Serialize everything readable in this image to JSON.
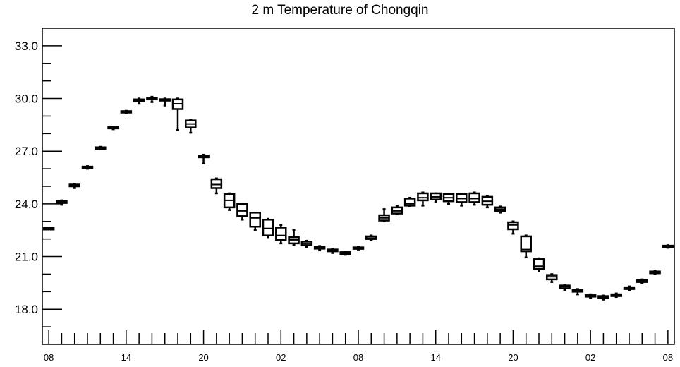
{
  "chart_data": {
    "type": "boxplot",
    "title": "2 m Temperature of Chongqin",
    "xlabel": "",
    "ylabel": "",
    "ylim": [
      16.0,
      34.0
    ],
    "y_ticks": [
      "18.0",
      "21.0",
      "24.0",
      "27.0",
      "30.0",
      "33.0"
    ],
    "y_tick_values": [
      18.0,
      21.0,
      24.0,
      27.0,
      30.0,
      33.0
    ],
    "x_tick_labels": [
      "08",
      "14",
      "20",
      "02",
      "08",
      "14",
      "20",
      "02",
      "08"
    ],
    "x_tick_label_hours": [
      0,
      6,
      12,
      18,
      24,
      30,
      36,
      42,
      48
    ],
    "x_step_hours": 1,
    "x_range_hours": [
      -0.5,
      48.5
    ],
    "grid": false,
    "colors": {
      "box": "#000000",
      "background": "#ffffff"
    },
    "boxes": [
      {
        "hour": 0,
        "min": 22.55,
        "q1": 22.58,
        "median": 22.6,
        "q3": 22.62,
        "max": 22.65
      },
      {
        "hour": 1,
        "min": 23.95,
        "q1": 24.05,
        "median": 24.1,
        "q3": 24.15,
        "max": 24.2
      },
      {
        "hour": 2,
        "min": 24.9,
        "q1": 25.0,
        "median": 25.05,
        "q3": 25.1,
        "max": 25.15
      },
      {
        "hour": 3,
        "min": 26.0,
        "q1": 26.05,
        "median": 26.1,
        "q3": 26.12,
        "max": 26.15
      },
      {
        "hour": 4,
        "min": 27.1,
        "q1": 27.15,
        "median": 27.2,
        "q3": 27.22,
        "max": 27.25
      },
      {
        "hour": 5,
        "min": 28.25,
        "q1": 28.3,
        "median": 28.35,
        "q3": 28.38,
        "max": 28.4
      },
      {
        "hour": 6,
        "min": 29.15,
        "q1": 29.2,
        "median": 29.25,
        "q3": 29.28,
        "max": 29.3
      },
      {
        "hour": 7,
        "min": 29.7,
        "q1": 29.85,
        "median": 29.9,
        "q3": 29.95,
        "max": 30.0
      },
      {
        "hour": 8,
        "min": 29.8,
        "q1": 29.95,
        "median": 30.0,
        "q3": 30.05,
        "max": 30.1
      },
      {
        "hour": 9,
        "min": 29.6,
        "q1": 29.88,
        "median": 29.92,
        "q3": 29.96,
        "max": 30.0
      },
      {
        "hour": 10,
        "min": 28.2,
        "q1": 29.4,
        "median": 29.7,
        "q3": 29.95,
        "max": 30.0
      },
      {
        "hour": 11,
        "min": 28.05,
        "q1": 28.35,
        "median": 28.55,
        "q3": 28.75,
        "max": 28.8
      },
      {
        "hour": 12,
        "min": 26.3,
        "q1": 26.65,
        "median": 26.7,
        "q3": 26.75,
        "max": 26.8
      },
      {
        "hour": 13,
        "min": 24.6,
        "q1": 24.9,
        "median": 25.1,
        "q3": 25.4,
        "max": 25.45
      },
      {
        "hour": 14,
        "min": 23.65,
        "q1": 23.8,
        "median": 24.2,
        "q3": 24.55,
        "max": 24.6
      },
      {
        "hour": 15,
        "min": 23.1,
        "q1": 23.3,
        "median": 23.6,
        "q3": 24.0,
        "max": 24.0
      },
      {
        "hour": 16,
        "min": 22.5,
        "q1": 22.7,
        "median": 23.2,
        "q3": 23.5,
        "max": 23.5
      },
      {
        "hour": 17,
        "min": 22.1,
        "q1": 22.2,
        "median": 22.6,
        "q3": 23.1,
        "max": 23.15
      },
      {
        "hour": 18,
        "min": 21.75,
        "q1": 21.95,
        "median": 22.2,
        "q3": 22.65,
        "max": 22.8
      },
      {
        "hour": 19,
        "min": 21.65,
        "q1": 21.75,
        "median": 21.95,
        "q3": 22.1,
        "max": 22.5
      },
      {
        "hour": 20,
        "min": 21.55,
        "q1": 21.65,
        "median": 21.75,
        "q3": 21.85,
        "max": 21.9
      },
      {
        "hour": 21,
        "min": 21.35,
        "q1": 21.45,
        "median": 21.5,
        "q3": 21.55,
        "max": 21.6
      },
      {
        "hour": 22,
        "min": 21.2,
        "q1": 21.3,
        "median": 21.35,
        "q3": 21.4,
        "max": 21.45
      },
      {
        "hour": 23,
        "min": 21.1,
        "q1": 21.15,
        "median": 21.2,
        "q3": 21.25,
        "max": 21.25
      },
      {
        "hour": 24,
        "min": 21.4,
        "q1": 21.45,
        "median": 21.5,
        "q3": 21.52,
        "max": 21.55
      },
      {
        "hour": 25,
        "min": 21.95,
        "q1": 22.0,
        "median": 22.05,
        "q3": 22.15,
        "max": 22.2
      },
      {
        "hour": 26,
        "min": 23.0,
        "q1": 23.05,
        "median": 23.2,
        "q3": 23.35,
        "max": 23.7
      },
      {
        "hour": 27,
        "min": 23.4,
        "q1": 23.45,
        "median": 23.6,
        "q3": 23.8,
        "max": 23.9
      },
      {
        "hour": 28,
        "min": 23.85,
        "q1": 23.9,
        "median": 24.0,
        "q3": 24.3,
        "max": 24.35
      },
      {
        "hour": 29,
        "min": 23.9,
        "q1": 24.2,
        "median": 24.35,
        "q3": 24.6,
        "max": 24.65
      },
      {
        "hour": 30,
        "min": 24.1,
        "q1": 24.25,
        "median": 24.4,
        "q3": 24.6,
        "max": 24.6
      },
      {
        "hour": 31,
        "min": 24.0,
        "q1": 24.15,
        "median": 24.35,
        "q3": 24.55,
        "max": 24.55
      },
      {
        "hour": 32,
        "min": 23.9,
        "q1": 24.1,
        "median": 24.3,
        "q3": 24.55,
        "max": 24.55
      },
      {
        "hour": 33,
        "min": 23.95,
        "q1": 24.1,
        "median": 24.3,
        "q3": 24.6,
        "max": 24.65
      },
      {
        "hour": 34,
        "min": 23.8,
        "q1": 23.95,
        "median": 24.15,
        "q3": 24.4,
        "max": 24.45
      },
      {
        "hour": 35,
        "min": 23.5,
        "q1": 23.6,
        "median": 23.7,
        "q3": 23.8,
        "max": 23.85
      },
      {
        "hour": 36,
        "min": 22.3,
        "q1": 22.55,
        "median": 22.8,
        "q3": 22.95,
        "max": 23.0
      },
      {
        "hour": 37,
        "min": 20.95,
        "q1": 21.3,
        "median": 21.4,
        "q3": 22.15,
        "max": 22.2
      },
      {
        "hour": 38,
        "min": 20.15,
        "q1": 20.3,
        "median": 20.45,
        "q3": 20.85,
        "max": 20.9
      },
      {
        "hour": 39,
        "min": 19.55,
        "q1": 19.7,
        "median": 19.85,
        "q3": 19.95,
        "max": 20.0
      },
      {
        "hour": 40,
        "min": 19.1,
        "q1": 19.2,
        "median": 19.3,
        "q3": 19.35,
        "max": 19.4
      },
      {
        "hour": 41,
        "min": 18.85,
        "q1": 19.0,
        "median": 19.05,
        "q3": 19.1,
        "max": 19.15
      },
      {
        "hour": 42,
        "min": 18.65,
        "q1": 18.72,
        "median": 18.75,
        "q3": 18.8,
        "max": 18.85
      },
      {
        "hour": 43,
        "min": 18.55,
        "q1": 18.62,
        "median": 18.68,
        "q3": 18.75,
        "max": 18.78
      },
      {
        "hour": 44,
        "min": 18.7,
        "q1": 18.75,
        "median": 18.8,
        "q3": 18.85,
        "max": 18.9
      },
      {
        "hour": 45,
        "min": 19.1,
        "q1": 19.15,
        "median": 19.2,
        "q3": 19.25,
        "max": 19.3
      },
      {
        "hour": 46,
        "min": 19.5,
        "q1": 19.55,
        "median": 19.6,
        "q3": 19.65,
        "max": 19.7
      },
      {
        "hour": 47,
        "min": 20.0,
        "q1": 20.05,
        "median": 20.1,
        "q3": 20.15,
        "max": 20.2
      },
      {
        "hour": 48,
        "min": 21.5,
        "q1": 21.55,
        "median": 21.6,
        "q3": 21.62,
        "max": 21.65
      }
    ]
  }
}
